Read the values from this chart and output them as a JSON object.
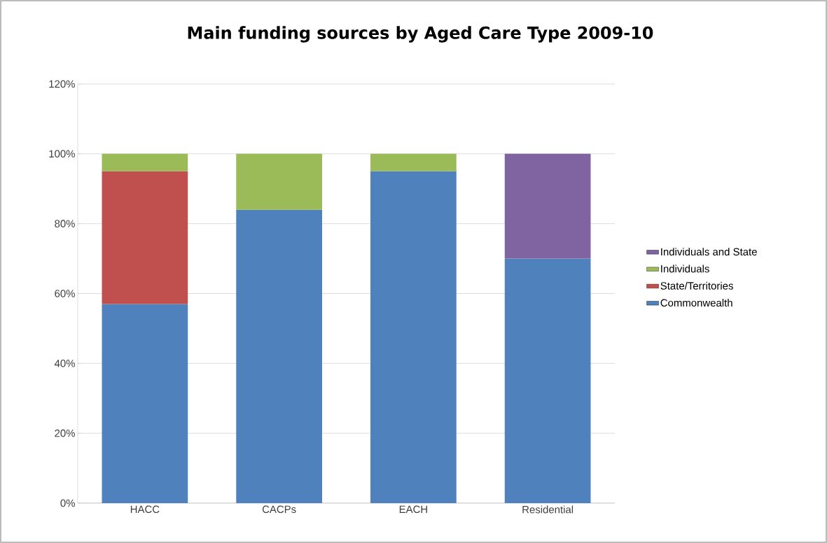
{
  "chart_data": {
    "type": "bar",
    "title": "Main funding sources by Aged Care Type 2009-10",
    "categories": [
      "HACC",
      "CACPs",
      "EACH",
      "Residential"
    ],
    "stacked": true,
    "series": [
      {
        "name": "Commonwealth",
        "color": "#4f81bd",
        "values": [
          57,
          84,
          95,
          70
        ]
      },
      {
        "name": "State/Territories",
        "color": "#c0504d",
        "values": [
          38,
          null,
          null,
          null
        ]
      },
      {
        "name": "Individuals",
        "color": "#9bbb59",
        "values": [
          5,
          16,
          5,
          null
        ]
      },
      {
        "name": "Individuals and State",
        "color": "#8064a2",
        "values": [
          null,
          null,
          null,
          30
        ]
      }
    ],
    "ylim": [
      0,
      120
    ],
    "yticks": [
      {
        "value": 0,
        "label": "0%"
      },
      {
        "value": 20,
        "label": "20%"
      },
      {
        "value": 40,
        "label": "40%"
      },
      {
        "value": 60,
        "label": "60%"
      },
      {
        "value": 80,
        "label": "80%"
      },
      {
        "value": 100,
        "label": "100%"
      },
      {
        "value": 120,
        "label": "120%"
      }
    ],
    "grid": "y",
    "legend": "right"
  }
}
